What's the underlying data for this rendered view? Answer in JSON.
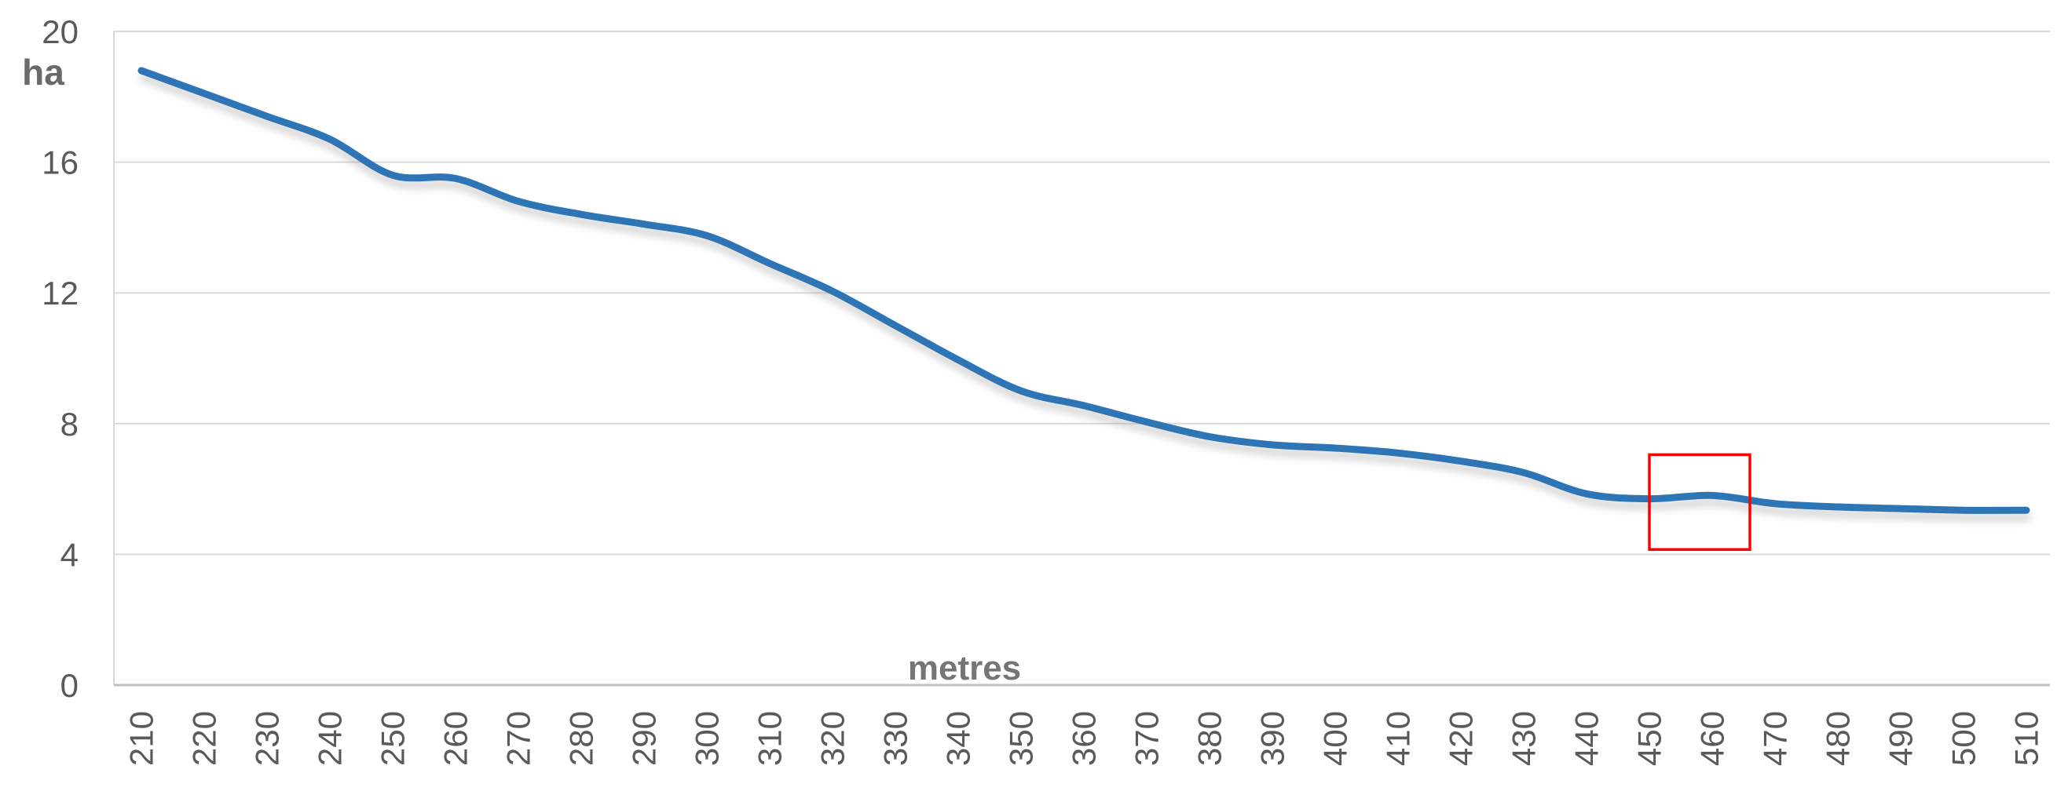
{
  "chart_data": {
    "type": "line",
    "title": "",
    "xlabel": "metres",
    "ylabel": "ha",
    "x": [
      210,
      220,
      230,
      240,
      250,
      260,
      270,
      280,
      290,
      300,
      310,
      320,
      330,
      340,
      350,
      360,
      370,
      380,
      390,
      400,
      410,
      420,
      430,
      440,
      450,
      460,
      470,
      480,
      490,
      500,
      510
    ],
    "series": [
      {
        "name": "ha",
        "values": [
          18.8,
          18.1,
          17.4,
          16.7,
          15.6,
          15.5,
          14.8,
          14.4,
          14.1,
          13.75,
          12.9,
          12.05,
          11.0,
          9.95,
          9.0,
          8.55,
          8.05,
          7.6,
          7.35,
          7.25,
          7.1,
          6.85,
          6.5,
          5.85,
          5.7,
          5.8,
          5.55,
          5.45,
          5.4,
          5.35,
          5.35
        ]
      }
    ],
    "ylim": [
      0,
      20
    ],
    "yticks": [
      0,
      4,
      8,
      12,
      16,
      20
    ],
    "grid": "horizontal-only",
    "legend_position": "none",
    "line_smooth": true,
    "annotation_box": {
      "x_start_metres": 450,
      "x_end_metres": 466,
      "y_bottom_ha": 4.15,
      "y_top_ha": 7.05
    },
    "colors": {
      "line": "#2E75B6",
      "gridline": "#D9D9D9",
      "axis_line": "#BFBFBF",
      "label_text": "#595959",
      "annotation_box": "#FF0000",
      "background": "#FFFFFF"
    }
  }
}
